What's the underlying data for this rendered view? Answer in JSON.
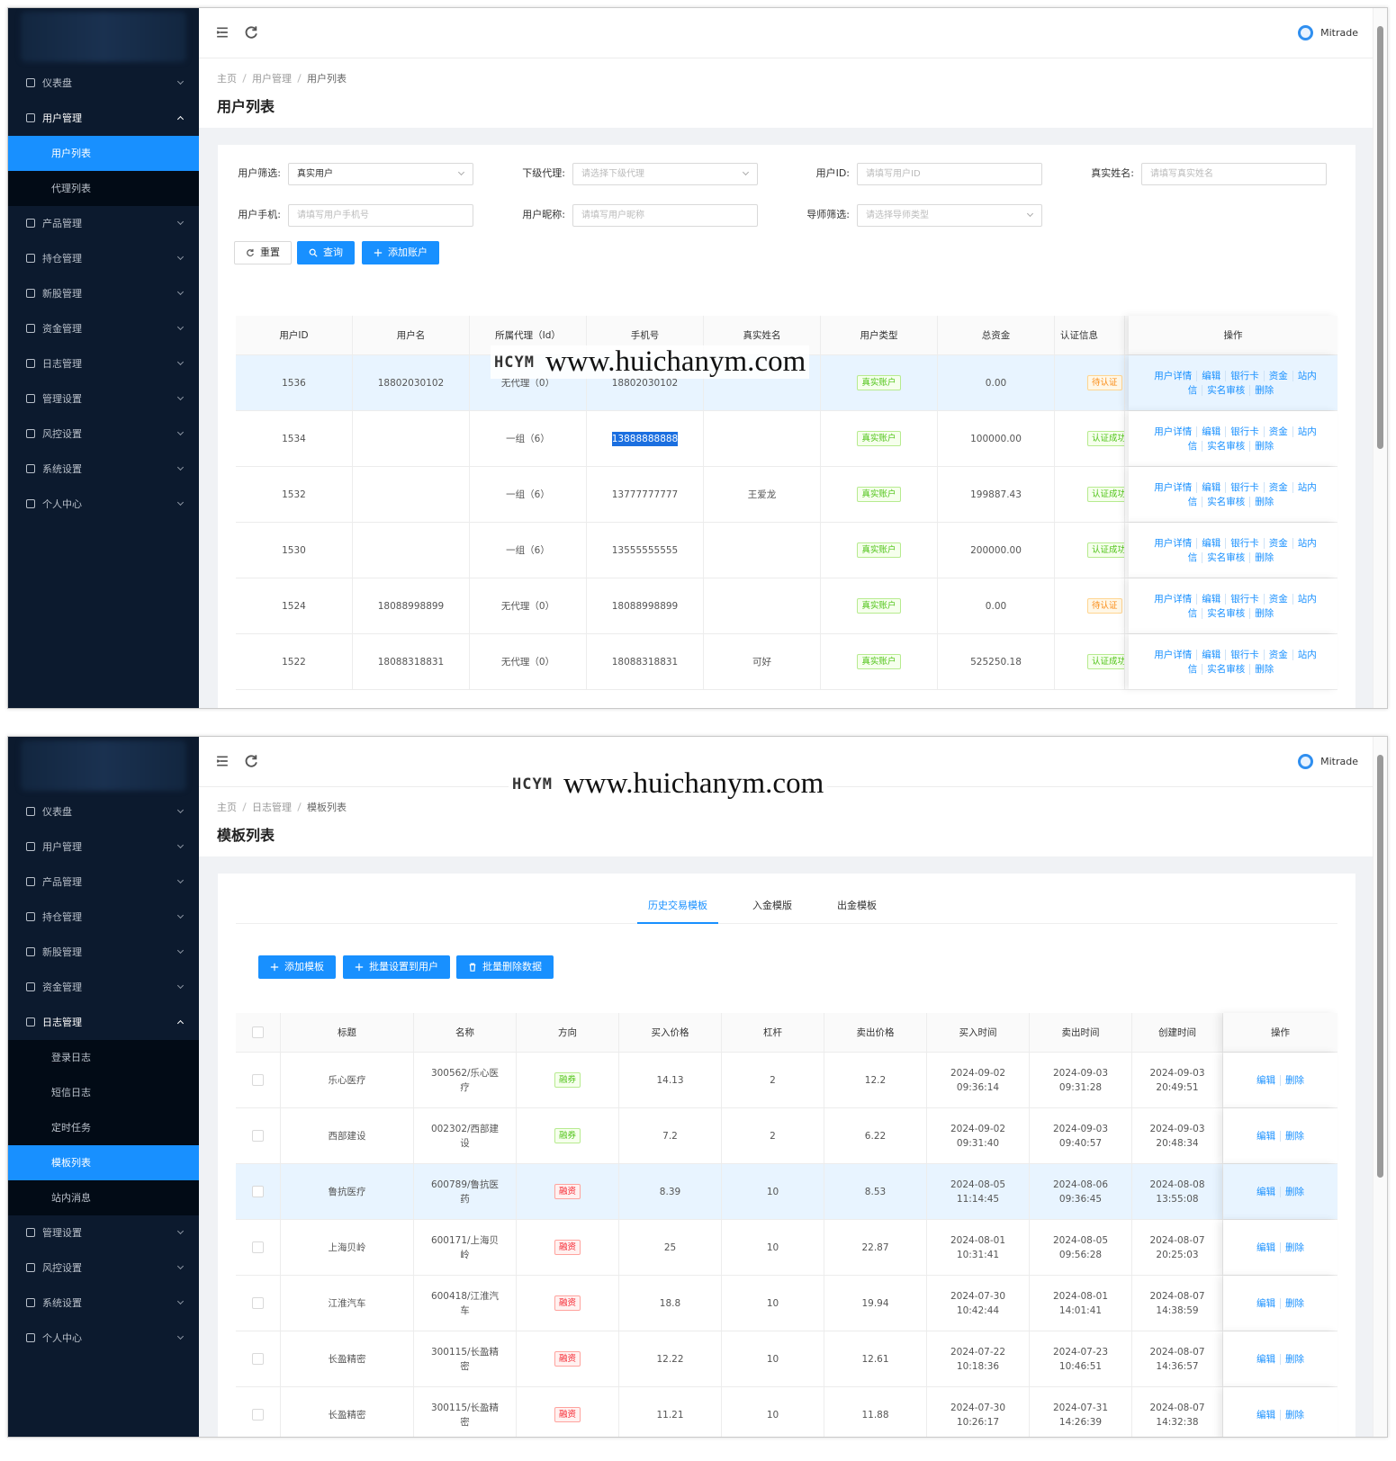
{
  "watermark": {
    "logo": "HCYM",
    "url": "www.huichanym.com"
  },
  "user_list_screen": {
    "header": {
      "username": "Mitrade"
    },
    "sidebar": [
      {
        "label": "仪表盘"
      },
      {
        "label": "用户管理",
        "children": [
          {
            "label": "用户列表",
            "active": true
          },
          {
            "label": "代理列表"
          }
        ]
      },
      {
        "label": "产品管理"
      },
      {
        "label": "持仓管理"
      },
      {
        "label": "新股管理"
      },
      {
        "label": "资金管理"
      },
      {
        "label": "日志管理"
      },
      {
        "label": "管理设置"
      },
      {
        "label": "风控设置"
      },
      {
        "label": "系统设置"
      },
      {
        "label": "个人中心"
      }
    ],
    "breadcrumb": [
      "主页",
      "用户管理",
      "用户列表"
    ],
    "title": "用户列表",
    "filters": [
      {
        "label": "用户筛选:",
        "value": "真实用户",
        "kind": "select"
      },
      {
        "label": "下级代理:",
        "placeholder": "请选择下级代理",
        "kind": "select"
      },
      {
        "label": "用户ID:",
        "placeholder": "请填写用户ID",
        "kind": "input"
      },
      {
        "label": "真实姓名:",
        "placeholder": "请填写真实姓名",
        "kind": "input"
      },
      {
        "label": "用户手机:",
        "placeholder": "请填写用户手机号",
        "kind": "input"
      },
      {
        "label": "用户昵称:",
        "placeholder": "请填写用户昵称",
        "kind": "input"
      },
      {
        "label": "导师筛选:",
        "placeholder": "请选择导师类型",
        "kind": "select"
      }
    ],
    "buttons": [
      {
        "label": "重置",
        "style": "default"
      },
      {
        "label": "查询",
        "style": "primary"
      },
      {
        "label": "添加账户",
        "style": "primary"
      }
    ],
    "table": {
      "columns": [
        "用户ID",
        "用户名",
        "所属代理（Id）",
        "手机号",
        "真实姓名",
        "用户类型",
        "总资金",
        "认证信息",
        "操作"
      ],
      "row_actions": [
        "用户详情",
        "编辑",
        "银行卡",
        "资金",
        "站内信",
        "实名审核",
        "删除"
      ],
      "rows": [
        {
          "id": "1536",
          "username": "18802030102",
          "agent": "无代理（0）",
          "phone": "18802030102",
          "real_name": null,
          "type": {
            "text": "真实账户",
            "tone": "success"
          },
          "funds": "0.00",
          "status": {
            "text": "待认证",
            "tone": "warning"
          }
        },
        {
          "id": "1534",
          "username": null,
          "agent": "一组（6）",
          "phone": "13888888888",
          "real_name": null,
          "type": {
            "text": "真实账户",
            "tone": "success"
          },
          "funds": "100000.00",
          "status": {
            "text": "认证成功",
            "tone": "success"
          }
        },
        {
          "id": "1532",
          "username": null,
          "agent": "一组（6）",
          "phone": "13777777777",
          "real_name": "王爱龙",
          "type": {
            "text": "真实账户",
            "tone": "success"
          },
          "funds": "199887.43",
          "status": {
            "text": "认证成功",
            "tone": "success"
          }
        },
        {
          "id": "1530",
          "username": null,
          "agent": "一组（6）",
          "phone": "13555555555",
          "real_name": null,
          "type": {
            "text": "真实账户",
            "tone": "success"
          },
          "funds": "200000.00",
          "status": {
            "text": "认证成功",
            "tone": "success"
          }
        },
        {
          "id": "1524",
          "username": "18088998899",
          "agent": "无代理（0）",
          "phone": "18088998899",
          "real_name": null,
          "type": {
            "text": "真实账户",
            "tone": "success"
          },
          "funds": "0.00",
          "status": {
            "text": "待认证",
            "tone": "warning"
          }
        },
        {
          "id": "1522",
          "username": "18088318831",
          "agent": "无代理（0）",
          "phone": "18088318831",
          "real_name": "可好",
          "type": {
            "text": "真实账户",
            "tone": "success"
          },
          "funds": "525250.18",
          "status": {
            "text": "认证成功",
            "tone": "success"
          }
        }
      ]
    }
  },
  "template_list_screen": {
    "header": {
      "username": "Mitrade"
    },
    "sidebar": [
      {
        "label": "仪表盘"
      },
      {
        "label": "用户管理"
      },
      {
        "label": "产品管理"
      },
      {
        "label": "持仓管理"
      },
      {
        "label": "新股管理"
      },
      {
        "label": "资金管理"
      },
      {
        "label": "日志管理",
        "children": [
          {
            "label": "登录日志"
          },
          {
            "label": "短信日志"
          },
          {
            "label": "定时任务"
          },
          {
            "label": "模板列表",
            "active": true
          },
          {
            "label": "站内消息"
          }
        ]
      },
      {
        "label": "管理设置"
      },
      {
        "label": "风控设置"
      },
      {
        "label": "系统设置"
      },
      {
        "label": "个人中心"
      }
    ],
    "breadcrumb": [
      "主页",
      "日志管理",
      "模板列表"
    ],
    "title": "模板列表",
    "tabs": [
      {
        "label": "历史交易模板",
        "active": true
      },
      {
        "label": "入金模版"
      },
      {
        "label": "出金模板"
      }
    ],
    "buttons": [
      {
        "label": "添加模板"
      },
      {
        "label": "批量设置到用户"
      },
      {
        "label": "批量删除数据"
      }
    ],
    "table": {
      "columns": [
        "标题",
        "名称",
        "方向",
        "买入价格",
        "杠杆",
        "卖出价格",
        "买入时间",
        "卖出时间",
        "创建时间",
        "操作"
      ],
      "row_actions": [
        "编辑",
        "删除"
      ],
      "rows": [
        {
          "title": "乐心医疗",
          "name": "300562/乐心医疗",
          "direction": {
            "text": "融券",
            "tone": "success"
          },
          "buy_price": "14.13",
          "leverage": "2",
          "sell_price": "12.2",
          "buy_time": "2024-09-02 09:36:14",
          "sell_time": "2024-09-03 09:31:28",
          "created": "2024-09-03 20:49:51"
        },
        {
          "title": "西部建设",
          "name": "002302/西部建设",
          "direction": {
            "text": "融券",
            "tone": "success"
          },
          "buy_price": "7.2",
          "leverage": "2",
          "sell_price": "6.22",
          "buy_time": "2024-09-02 09:31:40",
          "sell_time": "2024-09-03 09:40:57",
          "created": "2024-09-03 20:48:34"
        },
        {
          "title": "鲁抗医疗",
          "name": "600789/鲁抗医药",
          "direction": {
            "text": "融资",
            "tone": "danger"
          },
          "buy_price": "8.39",
          "leverage": "10",
          "sell_price": "8.53",
          "buy_time": "2024-08-05 11:14:45",
          "sell_time": "2024-08-06 09:36:45",
          "created": "2024-08-08 13:55:08"
        },
        {
          "title": "上海贝岭",
          "name": "600171/上海贝岭",
          "direction": {
            "text": "融资",
            "tone": "danger"
          },
          "buy_price": "25",
          "leverage": "10",
          "sell_price": "22.87",
          "buy_time": "2024-08-01 10:31:41",
          "sell_time": "2024-08-05 09:56:28",
          "created": "2024-08-07 20:25:03"
        },
        {
          "title": "江淮汽车",
          "name": "600418/江淮汽车",
          "direction": {
            "text": "融资",
            "tone": "danger"
          },
          "buy_price": "18.8",
          "leverage": "10",
          "sell_price": "19.94",
          "buy_time": "2024-07-30 10:42:44",
          "sell_time": "2024-08-01 14:01:41",
          "created": "2024-08-07 14:38:59"
        },
        {
          "title": "长盈精密",
          "name": "300115/长盈精密",
          "direction": {
            "text": "融资",
            "tone": "danger"
          },
          "buy_price": "12.22",
          "leverage": "10",
          "sell_price": "12.61",
          "buy_time": "2024-07-22 10:18:36",
          "sell_time": "2024-07-23 10:46:51",
          "created": "2024-08-07 14:36:57"
        },
        {
          "title": "长盈精密",
          "name": "300115/长盈精密",
          "direction": {
            "text": "融资",
            "tone": "danger"
          },
          "buy_price": "11.21",
          "leverage": "10",
          "sell_price": "11.88",
          "buy_time": "2024-07-30 10:26:17",
          "sell_time": "2024-07-31 14:26:39",
          "created": "2024-08-07 14:32:38"
        }
      ]
    }
  }
}
